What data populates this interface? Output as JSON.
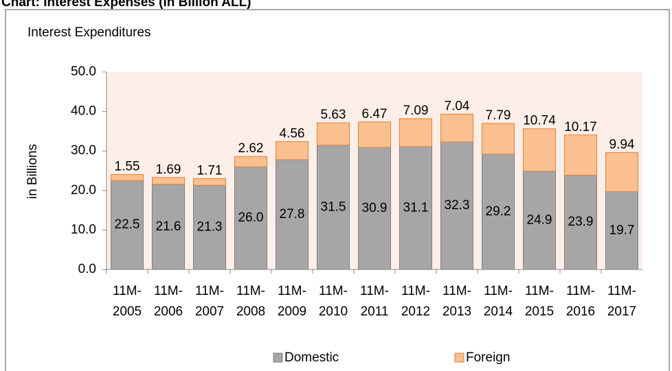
{
  "chart_data": {
    "type": "stacked_bar",
    "title": "Chart: Interest Expenses (in Billion ALL)",
    "subtitle": "Interest Expenditures",
    "y_label": "in Billions",
    "categories": [
      "11M-2005",
      "11M-2006",
      "11M-2007",
      "11M-2008",
      "11M-2009",
      "11M-2010",
      "11M-2011",
      "11M-2012",
      "11M-2013",
      "11M-2014",
      "11M-2015",
      "11M-2016",
      "11M-2017"
    ],
    "series": [
      {
        "name": "Domestic",
        "color": "#a6a6a6",
        "values": [
          22.5,
          21.6,
          21.3,
          26.0,
          27.8,
          31.5,
          30.9,
          31.1,
          32.3,
          29.2,
          24.9,
          23.9,
          19.7
        ],
        "value_labels": [
          "22.5",
          "21.6",
          "21.3",
          "26.0",
          "27.8",
          "31.5",
          "30.9",
          "31.1",
          "32.3",
          "29.2",
          "24.9",
          "23.9",
          "19.7"
        ]
      },
      {
        "name": "Foreign",
        "color": "#fac090",
        "values": [
          1.55,
          1.69,
          1.71,
          2.62,
          4.56,
          5.63,
          6.47,
          7.09,
          7.04,
          7.79,
          10.74,
          10.17,
          9.94
        ]
      }
    ],
    "ylim": [
      0,
      50
    ],
    "yticks": [
      {
        "value": 0,
        "label": "0.0"
      },
      {
        "value": 10,
        "label": "10.0"
      },
      {
        "value": 20,
        "label": "20.0"
      },
      {
        "value": 30,
        "label": "30.0"
      },
      {
        "value": 40,
        "label": "40.0"
      },
      {
        "value": 50,
        "label": "50.0"
      }
    ],
    "legend": "bottom"
  }
}
